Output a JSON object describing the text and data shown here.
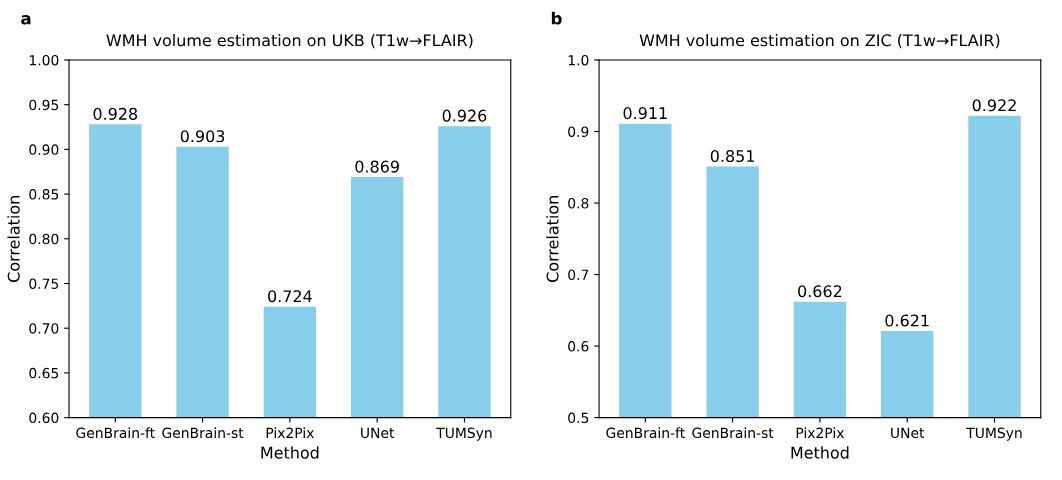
{
  "chart_data": [
    {
      "type": "bar",
      "title": "WMH volume estimation on UKB (T1w→FLAIR)",
      "xlabel": "Method",
      "ylabel": "Correlation",
      "annotations": [
        "a"
      ],
      "categories": [
        "GenBrain-ft",
        "GenBrain-st",
        "Pix2Pix",
        "UNet",
        "TUMSyn"
      ],
      "values": [
        0.928,
        0.903,
        0.724,
        0.869,
        0.926
      ],
      "color": "#87ceeb",
      "data_labels": true,
      "ylim": [
        0.6,
        1.0
      ],
      "yticks": [
        {
          "value": 0.6,
          "label": "0.60"
        },
        {
          "value": 0.65,
          "label": "0.65"
        },
        {
          "value": 0.7,
          "label": "0.70"
        },
        {
          "value": 0.75,
          "label": "0.75"
        },
        {
          "value": 0.8,
          "label": "0.80"
        },
        {
          "value": 0.85,
          "label": "0.85"
        },
        {
          "value": 0.9,
          "label": "0.90"
        },
        {
          "value": 0.95,
          "label": "0.95"
        },
        {
          "value": 1.0,
          "label": "1.00"
        }
      ],
      "grid": false
    },
    {
      "type": "bar",
      "title": "WMH volume estimation on ZIC (T1w→FLAIR)",
      "xlabel": "Method",
      "ylabel": "Correlation",
      "annotations": [
        "b"
      ],
      "categories": [
        "GenBrain-ft",
        "GenBrain-st",
        "Pix2Pix",
        "UNet",
        "TUMSyn"
      ],
      "values": [
        0.911,
        0.851,
        0.662,
        0.621,
        0.922
      ],
      "color": "#87ceeb",
      "data_labels": true,
      "ylim": [
        0.5,
        1.0
      ],
      "yticks": [
        {
          "value": 0.5,
          "label": "0.5"
        },
        {
          "value": 0.6,
          "label": "0.6"
        },
        {
          "value": 0.7,
          "label": "0.7"
        },
        {
          "value": 0.8,
          "label": "0.8"
        },
        {
          "value": 0.9,
          "label": "0.9"
        },
        {
          "value": 1.0,
          "label": "1.0"
        }
      ],
      "grid": false
    }
  ]
}
